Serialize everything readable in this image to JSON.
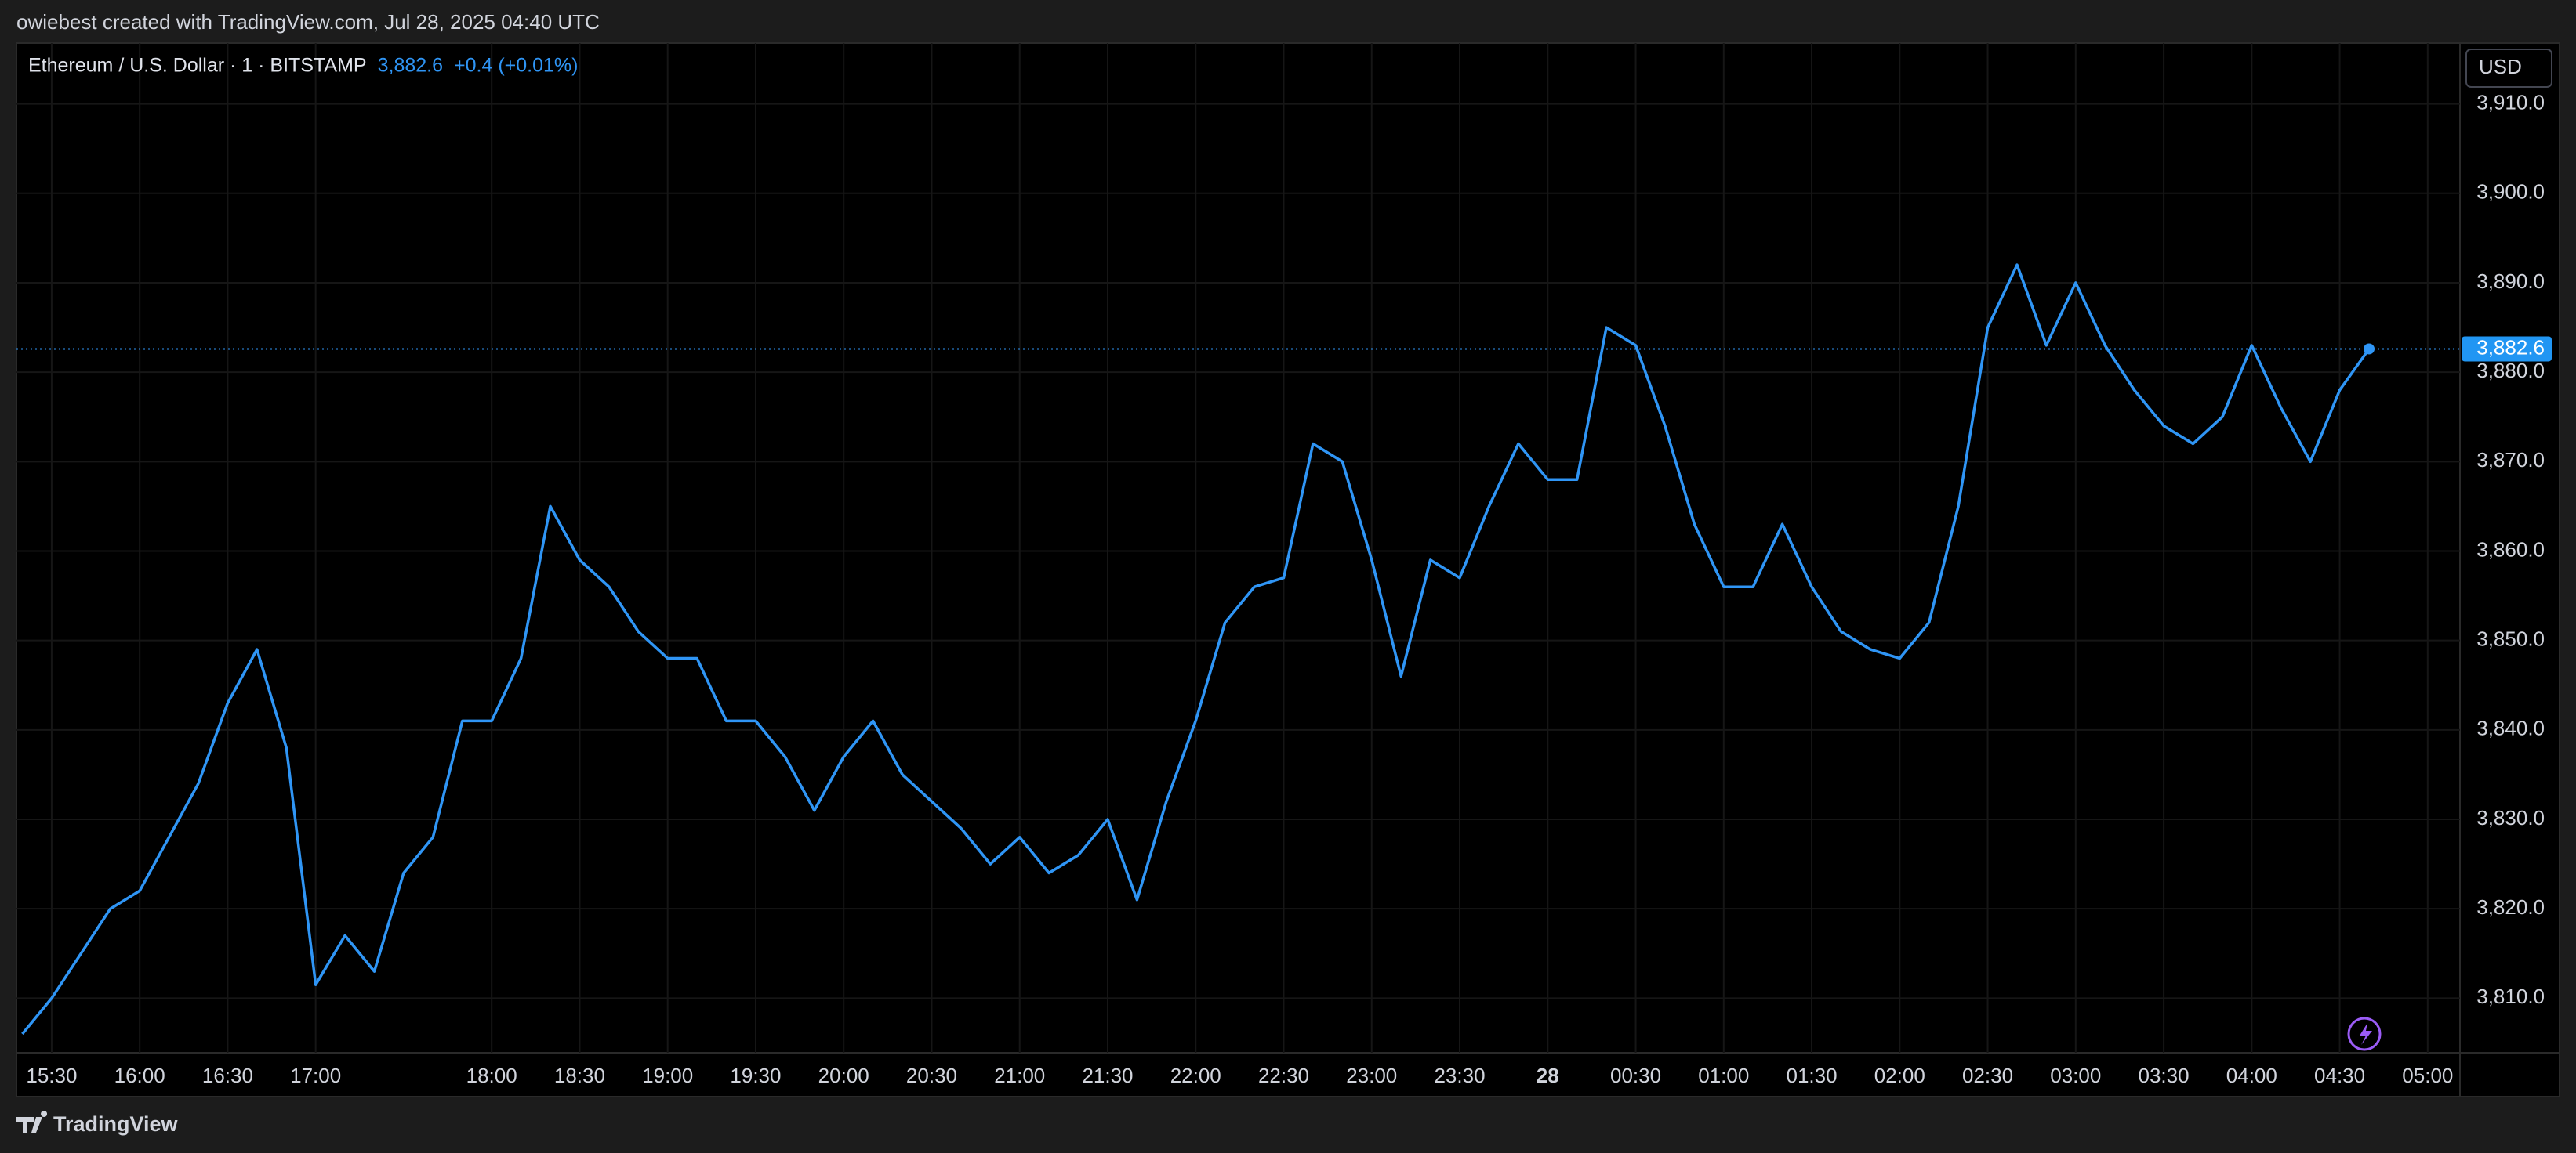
{
  "header": {
    "attribution": "owiebest created with TradingView.com, Jul 28, 2025 04:40 UTC"
  },
  "legend": {
    "symbol": "Ethereum / U.S. Dollar · 1 · BITSTAMP",
    "price": "3,882.6",
    "change": "+0.4 (+0.01%)"
  },
  "currency": "USD",
  "footer": {
    "brand": "TradingView"
  },
  "chart_data": {
    "type": "line",
    "color": "#2f95f5",
    "x": [
      "15:20",
      "15:30",
      "15:40",
      "15:50",
      "16:00",
      "16:10",
      "16:20",
      "16:30",
      "16:40",
      "16:50",
      "17:00",
      "17:10",
      "17:20",
      "17:30",
      "17:40",
      "17:50",
      "18:00",
      "18:10",
      "18:20",
      "18:30",
      "18:40",
      "18:50",
      "19:00",
      "19:10",
      "19:20",
      "19:30",
      "19:40",
      "19:50",
      "20:00",
      "20:10",
      "20:20",
      "20:30",
      "20:40",
      "20:50",
      "21:00",
      "21:10",
      "21:20",
      "21:30",
      "21:40",
      "21:50",
      "22:00",
      "22:10",
      "22:20",
      "22:30",
      "22:40",
      "22:50",
      "23:00",
      "23:10",
      "23:20",
      "23:30",
      "23:40",
      "23:50",
      "00:00",
      "00:10",
      "00:20",
      "00:30",
      "00:40",
      "00:50",
      "01:00",
      "01:10",
      "01:20",
      "01:30",
      "01:40",
      "01:50",
      "02:00",
      "02:10",
      "02:20",
      "02:30",
      "02:40",
      "02:50",
      "03:00",
      "03:10",
      "03:20",
      "03:30",
      "03:40",
      "03:50",
      "04:00",
      "04:10",
      "04:20",
      "04:30",
      "04:40"
    ],
    "values": [
      3806,
      3810,
      3815,
      3820,
      3822,
      3828,
      3834,
      3843,
      3849,
      3838,
      3811.5,
      3817,
      3813,
      3824,
      3828,
      3841,
      3841,
      3848,
      3865,
      3859,
      3856,
      3851,
      3848,
      3848,
      3841,
      3841,
      3837,
      3831,
      3837,
      3841,
      3835,
      3832,
      3829,
      3825,
      3828,
      3824,
      3826,
      3830,
      3821,
      3832,
      3841,
      3852,
      3856,
      3857,
      3872,
      3870,
      3859,
      3846,
      3859,
      3857,
      3865,
      3872,
      3868,
      3868,
      3885,
      3883,
      3874,
      3863,
      3856,
      3856,
      3863,
      3856,
      3851,
      3849,
      3848,
      3852,
      3865,
      3885,
      3892,
      3883,
      3890,
      3883,
      3878,
      3874,
      3872,
      3875,
      3883,
      3876,
      3870,
      3878,
      3882.6
    ],
    "last_label": "3,882.6",
    "xlim": [
      "15:18",
      "05:11"
    ],
    "xticks": [
      "15:30",
      "16:00",
      "16:30",
      "17:00",
      "18:00",
      "18:30",
      "19:00",
      "19:30",
      "20:00",
      "20:30",
      "21:00",
      "21:30",
      "22:00",
      "22:30",
      "23:00",
      "23:30",
      {
        "value": "00:00",
        "label": "28"
      },
      "00:30",
      "01:00",
      "01:30",
      "02:00",
      "02:30",
      "03:00",
      "03:30",
      "04:00",
      "04:30",
      "05:00"
    ],
    "ylim": [
      3803.9,
      3916.8
    ],
    "yticks": [
      {
        "value": 3810,
        "label": "3,810.0"
      },
      {
        "value": 3820,
        "label": "3,820.0"
      },
      {
        "value": 3830,
        "label": "3,830.0"
      },
      {
        "value": 3840,
        "label": "3,840.0"
      },
      {
        "value": 3850,
        "label": "3,850.0"
      },
      {
        "value": 3860,
        "label": "3,860.0"
      },
      {
        "value": 3870,
        "label": "3,870.0"
      },
      {
        "value": 3880,
        "label": "3,880.0"
      },
      {
        "value": 3890,
        "label": "3,890.0"
      },
      {
        "value": 3900,
        "label": "3,900.0"
      },
      {
        "value": 3910,
        "label": "3,910.0"
      }
    ],
    "grid": true
  }
}
